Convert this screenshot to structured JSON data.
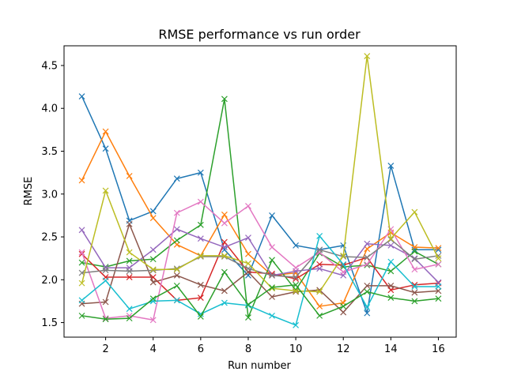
{
  "chart_data": {
    "type": "line",
    "title": "RMSE performance vs run order",
    "xlabel": "Run number",
    "ylabel": "RMSE",
    "xlim": [
      0.25,
      16.75
    ],
    "ylim": [
      1.33,
      4.73
    ],
    "xticks": [
      2,
      4,
      6,
      8,
      10,
      12,
      14,
      16
    ],
    "yticks": [
      1.5,
      2.0,
      2.5,
      3.0,
      3.5,
      4.0,
      4.5
    ],
    "xtick_labels": [
      "2",
      "4",
      "6",
      "8",
      "10",
      "12",
      "14",
      "16"
    ],
    "ytick_labels": [
      "1.5",
      "2.0",
      "2.5",
      "3.0",
      "3.5",
      "4.0",
      "4.5"
    ],
    "marker": "x",
    "grid": false,
    "x": [
      1,
      2,
      3,
      4,
      5,
      6,
      7,
      8,
      9,
      10,
      11,
      12,
      13,
      14,
      15,
      16
    ],
    "series": [
      {
        "color": "#1f77b4",
        "values": [
          4.14,
          3.53,
          2.69,
          2.8,
          3.18,
          3.25,
          2.35,
          2.05,
          2.75,
          2.4,
          2.35,
          2.4,
          1.61,
          3.33,
          2.35,
          2.35
        ]
      },
      {
        "color": "#ff7f0e",
        "values": [
          3.16,
          3.73,
          3.21,
          2.72,
          2.41,
          2.28,
          2.76,
          2.3,
          2.05,
          2.08,
          1.69,
          1.73,
          2.36,
          2.55,
          2.38,
          2.37
        ]
      },
      {
        "color": "#2ca02c",
        "values": [
          2.2,
          2.15,
          2.22,
          2.24,
          2.46,
          2.64,
          4.11,
          1.56,
          2.23,
          1.88,
          2.31,
          2.15,
          2.17,
          2.1,
          2.33,
          2.18
        ]
      },
      {
        "color": "#d62728",
        "values": [
          2.3,
          2.03,
          2.03,
          2.03,
          1.76,
          1.79,
          2.44,
          2.09,
          2.07,
          2.01,
          2.18,
          2.17,
          2.26,
          1.88,
          1.94,
          1.96
        ]
      },
      {
        "color": "#9467bd",
        "values": [
          2.58,
          2.14,
          2.14,
          2.35,
          2.59,
          2.48,
          2.38,
          2.49,
          2.05,
          2.1,
          2.13,
          2.05,
          2.42,
          2.4,
          2.25,
          1.97
        ]
      },
      {
        "color": "#8c564b",
        "values": [
          1.72,
          1.74,
          2.65,
          1.97,
          2.05,
          1.94,
          1.87,
          2.09,
          1.8,
          1.86,
          1.88,
          1.62,
          1.93,
          1.93,
          1.85,
          1.87
        ]
      },
      {
        "color": "#e377c2",
        "values": [
          2.32,
          1.55,
          1.58,
          1.53,
          2.78,
          2.91,
          2.66,
          2.86,
          2.38,
          2.14,
          2.32,
          2.09,
          2.18,
          2.59,
          2.12,
          2.18
        ]
      },
      {
        "color": "#7f7f7f",
        "values": [
          2.08,
          2.11,
          2.1,
          2.11,
          2.13,
          2.27,
          2.27,
          2.13,
          2.05,
          2.03,
          2.35,
          2.27,
          2.26,
          2.47,
          2.24,
          2.28
        ]
      },
      {
        "color": "#bcbd22",
        "values": [
          1.96,
          3.04,
          2.32,
          2.12,
          2.12,
          2.28,
          2.28,
          2.19,
          1.9,
          1.87,
          1.86,
          2.28,
          4.61,
          2.48,
          2.79,
          2.25
        ]
      },
      {
        "color": "#17becf",
        "values": [
          1.76,
          1.99,
          1.66,
          1.75,
          1.76,
          1.6,
          1.73,
          1.7,
          1.58,
          1.47,
          2.51,
          2.18,
          1.68,
          2.21,
          1.92,
          1.92
        ]
      },
      {
        "color": "#2ca02c",
        "values": [
          1.58,
          1.54,
          1.55,
          1.78,
          1.93,
          1.57,
          2.09,
          1.71,
          1.91,
          1.94,
          1.58,
          1.69,
          1.86,
          1.79,
          1.75,
          1.78
        ]
      }
    ]
  }
}
